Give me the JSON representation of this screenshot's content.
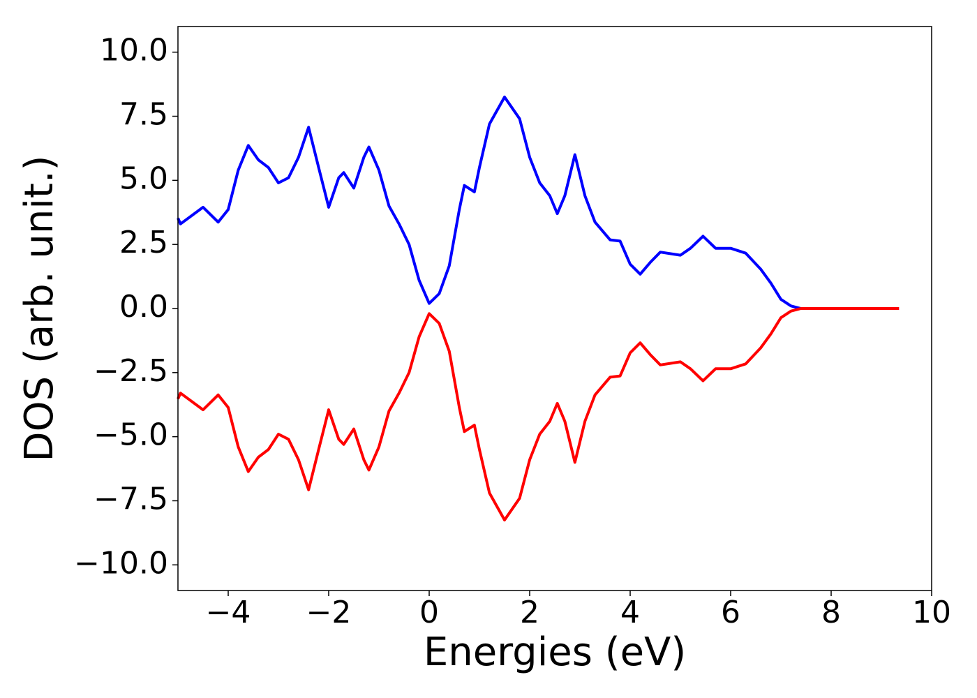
{
  "chart_data": {
    "type": "line",
    "xlabel": "Energies (eV)",
    "ylabel": "DOS (arb. unit.)",
    "x": [
      -5,
      -4.95,
      -4.5,
      -4.2,
      -4,
      -3.8,
      -3.6,
      -3.4,
      -3.2,
      -3,
      -2.8,
      -2.6,
      -2.4,
      -2.2,
      -2,
      -1.8,
      -1.7,
      -1.5,
      -1.3,
      -1.2,
      -1,
      -0.8,
      -0.6,
      -0.4,
      -0.2,
      0,
      0.2,
      0.4,
      0.6,
      0.7,
      0.9,
      1,
      1.2,
      1.5,
      1.8,
      2,
      2.2,
      2.4,
      2.55,
      2.7,
      2.9,
      3.1,
      3.3,
      3.6,
      3.8,
      4,
      4.2,
      4.4,
      4.6,
      5,
      5.2,
      5.45,
      5.7,
      6,
      6.3,
      6.6,
      6.8,
      7,
      7.2,
      7.4,
      9.35
    ],
    "series": [
      {
        "color": "#0000ff",
        "values": [
          3.53,
          3.3,
          3.95,
          3.37,
          3.86,
          5.4,
          6.36,
          5.8,
          5.5,
          4.9,
          5.1,
          5.9,
          7.07,
          5.5,
          3.95,
          5.1,
          5.3,
          4.7,
          5.9,
          6.3,
          5.4,
          4.0,
          3.3,
          2.5,
          1.1,
          0.2,
          0.58,
          1.67,
          3.86,
          4.8,
          4.55,
          5.5,
          7.2,
          8.25,
          7.4,
          5.9,
          4.9,
          4.4,
          3.7,
          4.4,
          6.0,
          4.4,
          3.37,
          2.68,
          2.63,
          1.73,
          1.34,
          1.8,
          2.2,
          2.08,
          2.35,
          2.82,
          2.35,
          2.35,
          2.16,
          1.53,
          0.99,
          0.36,
          0.1,
          0,
          0
        ]
      },
      {
        "color": "#ff0000",
        "values": [
          -3.53,
          -3.3,
          -3.95,
          -3.37,
          -3.86,
          -5.4,
          -6.36,
          -5.8,
          -5.5,
          -4.9,
          -5.1,
          -5.9,
          -7.07,
          -5.5,
          -3.95,
          -5.1,
          -5.3,
          -4.7,
          -5.9,
          -6.3,
          -5.4,
          -4.0,
          -3.3,
          -2.5,
          -1.1,
          -0.2,
          -0.58,
          -1.67,
          -3.86,
          -4.8,
          -4.55,
          -5.5,
          -7.2,
          -8.25,
          -7.4,
          -5.9,
          -4.9,
          -4.4,
          -3.7,
          -4.4,
          -6.0,
          -4.4,
          -3.37,
          -2.68,
          -2.63,
          -1.73,
          -1.34,
          -1.8,
          -2.2,
          -2.08,
          -2.35,
          -2.82,
          -2.35,
          -2.35,
          -2.16,
          -1.53,
          -0.99,
          -0.36,
          -0.1,
          0,
          0
        ]
      }
    ],
    "xlim": [
      -5,
      10
    ],
    "xticks": [
      {
        "value": -4,
        "label": "−4"
      },
      {
        "value": -2,
        "label": "−2"
      },
      0,
      2,
      4,
      6,
      8,
      10
    ],
    "ylim": [
      -11,
      11
    ],
    "yticks": [
      {
        "value": -10,
        "label": "−10.0"
      },
      {
        "value": -7.5,
        "label": "−7.5"
      },
      {
        "value": -5,
        "label": "−5.0"
      },
      {
        "value": -2.5,
        "label": "−2.5"
      },
      {
        "value": 0,
        "label": "0.0"
      },
      2.5,
      {
        "value": 5,
        "label": "5.0"
      },
      7.5,
      {
        "value": 10,
        "label": "10.0"
      }
    ]
  }
}
